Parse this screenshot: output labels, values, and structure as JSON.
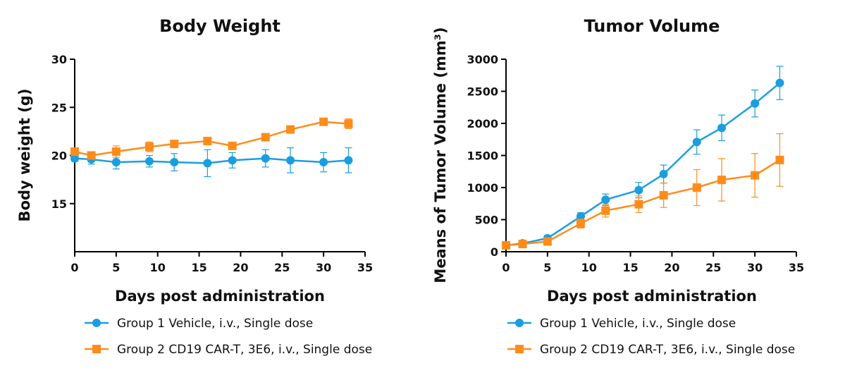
{
  "colors": {
    "group1": "#1a9ee0",
    "group2": "#ff8c1a"
  },
  "legend": [
    {
      "label": "Group 1 Vehicle, i.v., Single dose",
      "marker": "circle",
      "color": "#1a9ee0"
    },
    {
      "label": "Group 2 CD19 CAR-T, 3E6, i.v., Single dose",
      "marker": "square",
      "color": "#ff8c1a"
    }
  ],
  "chart_data": [
    {
      "type": "line",
      "title": "Body Weight",
      "xlabel": "Days post administration",
      "ylabel": "Body weight (g)",
      "xlim": [
        0,
        35
      ],
      "ylim": [
        10,
        30
      ],
      "xticks": [
        0,
        5,
        10,
        15,
        20,
        25,
        30,
        35
      ],
      "yticks": [
        15,
        20,
        25,
        30
      ],
      "grid": false,
      "legend_position": "bottom",
      "series": [
        {
          "name": "Group 1 Vehicle, i.v., Single dose",
          "marker": "circle",
          "color": "#1a9ee0",
          "x": [
            0,
            2,
            5,
            9,
            12,
            16,
            19,
            23,
            26,
            30,
            33
          ],
          "y": [
            19.7,
            19.6,
            19.3,
            19.4,
            19.3,
            19.2,
            19.5,
            19.7,
            19.5,
            19.3,
            19.5
          ],
          "err": [
            0.3,
            0.5,
            0.7,
            0.6,
            0.9,
            1.4,
            0.8,
            0.9,
            1.3,
            1.0,
            1.3
          ]
        },
        {
          "name": "Group 2 CD19 CAR-T, 3E6, i.v., Single dose",
          "marker": "square",
          "color": "#ff8c1a",
          "x": [
            0,
            2,
            5,
            9,
            12,
            16,
            19,
            23,
            26,
            30,
            33
          ],
          "y": [
            20.4,
            20.0,
            20.4,
            20.9,
            21.2,
            21.5,
            21.0,
            21.9,
            22.7,
            23.5,
            23.3
          ],
          "err": [
            0.2,
            0.3,
            0.6,
            0.5,
            0.3,
            0.3,
            0.3,
            0.3,
            0.3,
            0.3,
            0.5
          ]
        }
      ]
    },
    {
      "type": "line",
      "title": "Tumor Volume",
      "xlabel": "Days post administration",
      "ylabel": "Means of Tumor Volume (mm³)",
      "xlim": [
        0,
        35
      ],
      "ylim": [
        0,
        3000
      ],
      "xticks": [
        0,
        5,
        10,
        15,
        20,
        25,
        30,
        35
      ],
      "yticks": [
        0,
        500,
        1000,
        1500,
        2000,
        2500,
        3000
      ],
      "grid": false,
      "legend_position": "bottom",
      "series": [
        {
          "name": "Group 1 Vehicle, i.v., Single dose",
          "marker": "circle",
          "color": "#1a9ee0",
          "x": [
            0,
            2,
            5,
            9,
            12,
            16,
            19,
            23,
            26,
            30,
            33
          ],
          "y": [
            100,
            130,
            210,
            550,
            810,
            960,
            1210,
            1710,
            1930,
            2310,
            2630
          ],
          "err": [
            20,
            30,
            40,
            60,
            90,
            120,
            140,
            190,
            200,
            210,
            260
          ]
        },
        {
          "name": "Group 2 CD19 CAR-T, 3E6, i.v., Single dose",
          "marker": "square",
          "color": "#ff8c1a",
          "x": [
            0,
            2,
            5,
            9,
            12,
            16,
            19,
            23,
            26,
            30,
            33
          ],
          "y": [
            100,
            120,
            160,
            440,
            640,
            740,
            880,
            1000,
            1120,
            1190,
            1430
          ],
          "err": [
            20,
            25,
            30,
            70,
            100,
            130,
            190,
            280,
            330,
            340,
            410
          ]
        }
      ]
    }
  ]
}
